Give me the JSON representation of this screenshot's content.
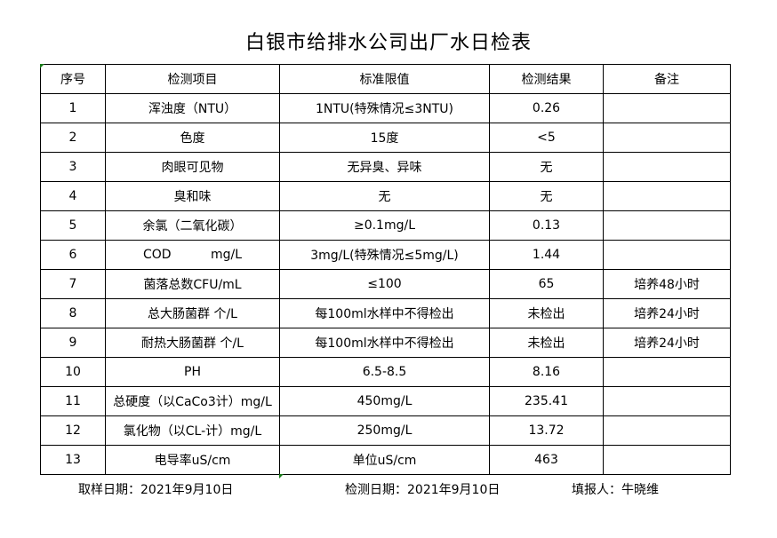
{
  "title": "白银市给排水公司出厂水日检表",
  "headers": [
    "序号",
    "检测项目",
    "标准限值",
    "检测结果",
    "备注"
  ],
  "rows": [
    [
      "1",
      "浑浊度（NTU）",
      "1NTU(特殊情况≤3NTU)",
      "0.26",
      ""
    ],
    [
      "2",
      "色度",
      "15度",
      "<5",
      ""
    ],
    [
      "3",
      "肉眼可见物",
      "无异臭、异味",
      "无",
      ""
    ],
    [
      "4",
      "臭和味",
      "无",
      "无",
      ""
    ],
    [
      "5",
      "余氯（二氧化碳）",
      "≥0.1mg/L",
      "0.13",
      ""
    ],
    [
      "6",
      "COD          mg/L",
      "3mg/L(特殊情况≤5mg/L)",
      "1.44",
      ""
    ],
    [
      "7",
      "菌落总数CFU/mL",
      "≤100",
      "65",
      "培养48小时"
    ],
    [
      "8",
      "总大肠菌群 个/L",
      "每100ml水样中不得检出",
      "未检出",
      "培养24小时"
    ],
    [
      "9",
      "耐热大肠菌群 个/L",
      "每100ml水样中不得检出",
      "未检出",
      "培养24小时"
    ],
    [
      "10",
      "PH",
      "6.5-8.5",
      "8.16",
      ""
    ],
    [
      "11",
      "总硬度（以CaCo3计）mg/L",
      "450mg/L",
      "235.41",
      ""
    ],
    [
      "12",
      "氯化物（以CL-计）mg/L",
      "250mg/L",
      "13.72",
      ""
    ],
    [
      "13",
      "电导率uS/cm",
      "单位uS/cm",
      "463",
      ""
    ]
  ],
  "footer": {
    "sample_date": "取样日期：2021年9月10日",
    "test_date": "检测日期：2021年9月10日",
    "reporter": "填报人：牛晓维"
  }
}
